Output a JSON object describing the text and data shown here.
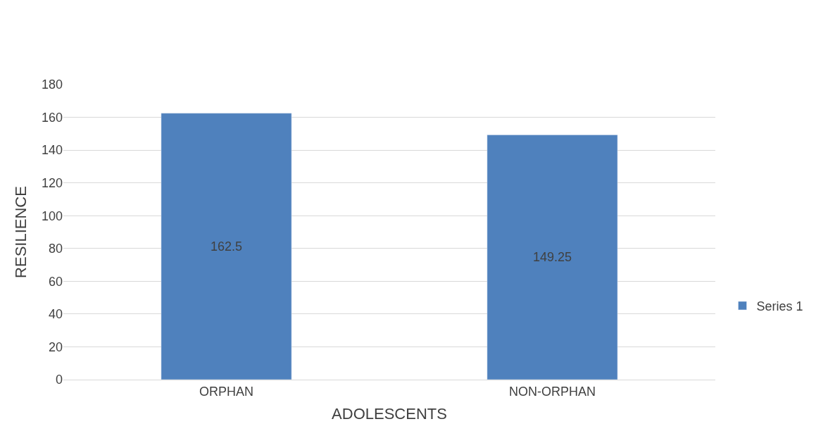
{
  "chart_data": {
    "type": "bar",
    "xlabel": "ADOLESCENTS",
    "ylabel": "RESILIENCE",
    "categories": [
      "ORPHAN",
      "NON-ORPHAN"
    ],
    "series": [
      {
        "name": "Series 1",
        "color": "#4f81bd",
        "values": [
          162.5,
          149.25
        ]
      }
    ],
    "ylim": [
      0,
      180
    ],
    "yticks": [
      0,
      20,
      40,
      60,
      80,
      100,
      120,
      140,
      160,
      180
    ],
    "grid": "y",
    "legend": "right",
    "data_labels": true
  }
}
